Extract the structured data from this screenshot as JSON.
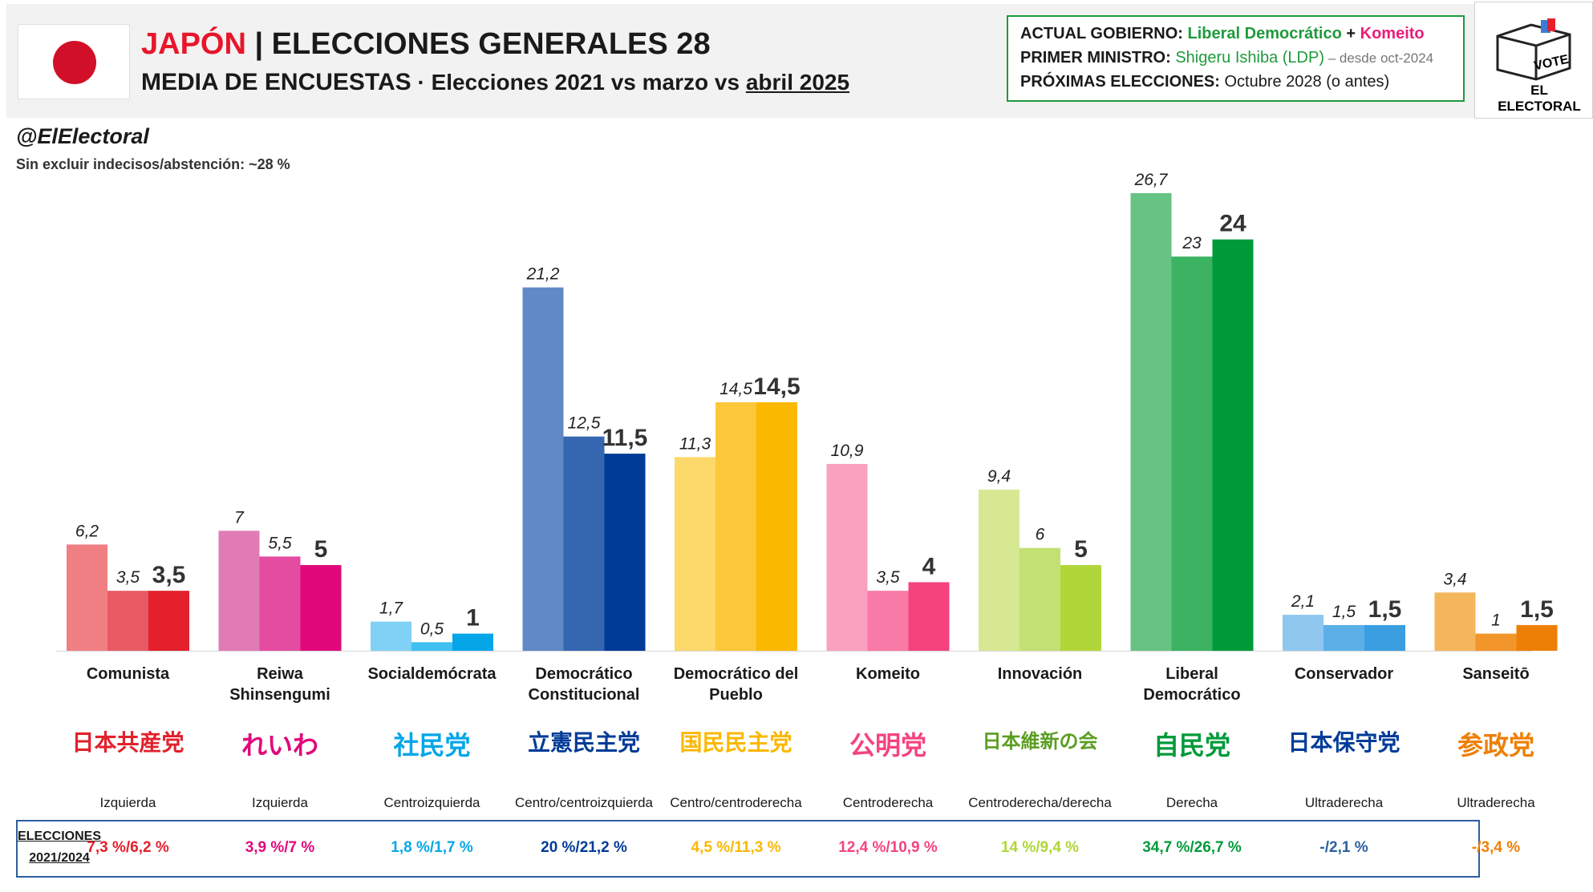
{
  "header": {
    "country": "JAPÓN",
    "title_rest": "| ELECCIONES GENERALES 28",
    "subtitle_main": "MEDIA DE ENCUESTAS",
    "subtitle_mid": " · Elecciones 2021 vs marzo vs ",
    "subtitle_ul": "abril 2025"
  },
  "info": {
    "gov_label": "ACTUAL GOBIERNO:",
    "gov_party1": "Liberal Democrático",
    "gov_plus": " + ",
    "gov_party2": "Komeito",
    "pm_label": "PRIMER MINISTRO:",
    "pm_name": "Shigeru Ishiba (LDP)",
    "pm_since": " – desde oct-2024",
    "next_label": "PRÓXIMAS ELECCIONES:",
    "next_value": "Octubre 2028 (o antes)"
  },
  "logo": {
    "vote": "VOTE",
    "brand": "EL ELECTORAL"
  },
  "handle": "@ElElectoral",
  "note": "Sin excluir indecisos/abstención: ~28 %",
  "chart_data": {
    "type": "bar",
    "categories": [
      "Comunista",
      "Reiwa Shinsengumi",
      "Socialdemócrata",
      "Democrático Constitucional",
      "Democrático del Pueblo",
      "Komeito",
      "Innovación",
      "Liberal Democrático",
      "Conservador",
      "Sanseitō"
    ],
    "series": [
      {
        "values": [
          6.2,
          7,
          1.7,
          21.2,
          11.3,
          10.9,
          9.4,
          26.7,
          2.1,
          3.4
        ]
      },
      {
        "values": [
          3.5,
          5.5,
          0.5,
          12.5,
          14.5,
          3.5,
          6,
          23,
          1.5,
          1
        ]
      },
      {
        "values": [
          3.5,
          5,
          1,
          11.5,
          14.5,
          4,
          5,
          24,
          1.5,
          1.5
        ]
      }
    ],
    "value_labels": [
      [
        "6,2",
        "7",
        "1,7",
        "21,2",
        "11,3",
        "10,9",
        "9,4",
        "26,7",
        "2,1",
        "3,4"
      ],
      [
        "3,5",
        "5,5",
        "0,5",
        "12,5",
        "14,5",
        "3,5",
        "6",
        "23",
        "1,5",
        "1"
      ],
      [
        "3,5",
        "5",
        "1",
        "11,5",
        "14,5",
        "4",
        "5",
        "24",
        "1,5",
        "1,5"
      ]
    ],
    "colors": [
      [
        "#f07f83",
        "#e85a63",
        "#e3202c"
      ],
      [
        "#e07bb5",
        "#e34ca0",
        "#e0087b"
      ],
      [
        "#7fd1f5",
        "#3ec0f0",
        "#05a6e8"
      ],
      [
        "#6089c5",
        "#3566b0",
        "#003b98"
      ],
      [
        "#fdd86a",
        "#fcc83a",
        "#fbb800"
      ],
      [
        "#f9a1bf",
        "#f87aa6",
        "#f5437e"
      ],
      [
        "#d6e891",
        "#c3e072",
        "#b0d63a"
      ],
      [
        "#67c383",
        "#3bb362",
        "#009a3a"
      ],
      [
        "#8fc7ef",
        "#5bb0e8",
        "#3a9ee0"
      ],
      [
        "#f5b55a",
        "#f2952a",
        "#ee7f05"
      ]
    ],
    "ylim": [
      0,
      26.7
    ]
  },
  "parties": [
    {
      "name_lines": [
        "Comunista"
      ],
      "logo": "日本共産党",
      "logo_color": "#e3202c",
      "ideology": "Izquierda",
      "result": "7,3 %/6,2 %",
      "result_color": "#e3202c"
    },
    {
      "name_lines": [
        "Reiwa",
        "Shinsengumi"
      ],
      "logo": "れいわ",
      "logo_color": "#e0087b",
      "ideology": "Izquierda",
      "result": "3,9 %/7 %",
      "result_color": "#e0087b"
    },
    {
      "name_lines": [
        "Socialdemócrata"
      ],
      "logo": "社民党",
      "logo_color": "#05a6e8",
      "ideology": "Centroizquierda",
      "result": "1,8 %/1,7 %",
      "result_color": "#05a6e8"
    },
    {
      "name_lines": [
        "Democrático",
        "Constitucional"
      ],
      "logo": "立憲民主党",
      "logo_color": "#003b98",
      "ideology": "Centro/centroizquierda",
      "result": "20 %/21,2 %",
      "result_color": "#003b98"
    },
    {
      "name_lines": [
        "Democrático del",
        "Pueblo"
      ],
      "logo": "国民民主党",
      "logo_color": "#fbb800",
      "ideology": "Centro/centroderecha",
      "result": "4,5 %/11,3 %",
      "result_color": "#fbb800"
    },
    {
      "name_lines": [
        "Komeito"
      ],
      "logo": "公明党",
      "logo_color": "#f5437e",
      "ideology": "Centroderecha",
      "result": "12,4 %/10,9 %",
      "result_color": "#f5437e"
    },
    {
      "name_lines": [
        "Innovación"
      ],
      "logo": "日本維新の会",
      "logo_color": "#5a9e22",
      "ideology": "Centroderecha/derecha",
      "result": "14 %/9,4 %",
      "result_color": "#b0d63a"
    },
    {
      "name_lines": [
        "Liberal",
        "Democrático"
      ],
      "logo": "自民党",
      "logo_color": "#009a3a",
      "ideology": "Derecha",
      "result": "34,7 %/26,7 %",
      "result_color": "#009a3a"
    },
    {
      "name_lines": [
        "Conservador"
      ],
      "logo": "日本保守党",
      "logo_color": "#003b98",
      "ideology": "Ultraderecha",
      "result": "-/2,1 %",
      "result_color": "#2b5f9e"
    },
    {
      "name_lines": [
        "Sanseitō"
      ],
      "logo": "参政党",
      "logo_color": "#ee7f05",
      "ideology": "Ultraderecha",
      "result": "-/3,4 %",
      "result_color": "#ee7f05"
    }
  ],
  "elections_label": [
    "ELECCIONES",
    "2021/2024"
  ]
}
